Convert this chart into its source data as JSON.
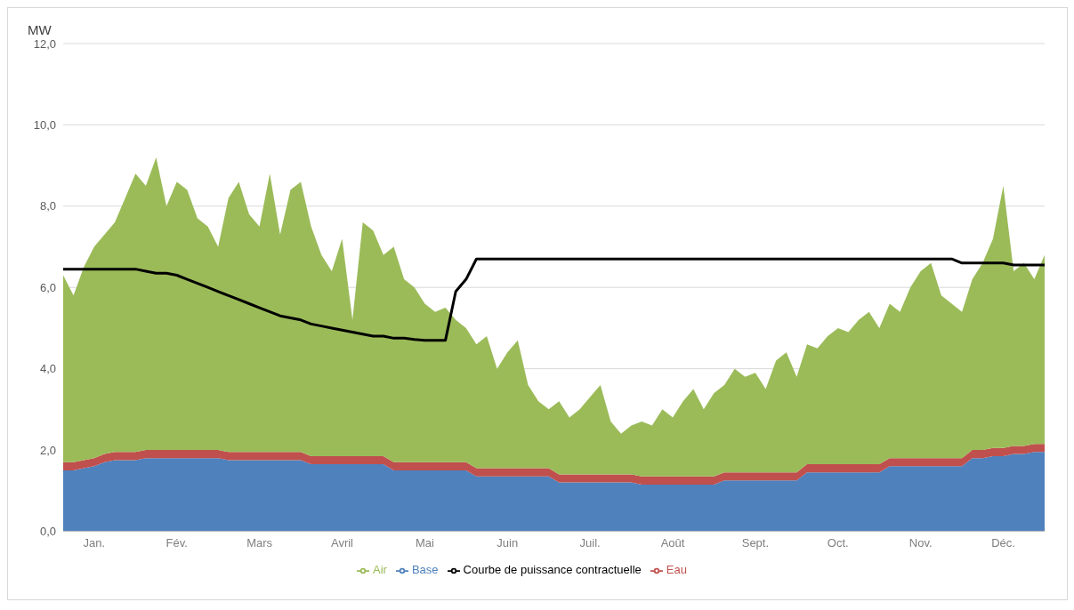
{
  "chart_data": {
    "type": "area",
    "ylabel": "MW",
    "stacked": true,
    "grid": "y",
    "legend": "bottom",
    "marker": "none",
    "categories": [
      null,
      null,
      null,
      "Jan.",
      null,
      null,
      null,
      null,
      null,
      null,
      null,
      "Fév.",
      null,
      null,
      null,
      null,
      null,
      null,
      null,
      "Mars",
      null,
      null,
      null,
      null,
      null,
      null,
      null,
      "Avril",
      null,
      null,
      null,
      null,
      null,
      null,
      null,
      "Mai",
      null,
      null,
      null,
      null,
      null,
      null,
      null,
      "Juin",
      null,
      null,
      null,
      null,
      null,
      null,
      null,
      "Juil.",
      null,
      null,
      null,
      null,
      null,
      null,
      null,
      "Août",
      null,
      null,
      null,
      null,
      null,
      null,
      null,
      "Sept.",
      null,
      null,
      null,
      null,
      null,
      null,
      null,
      "Oct.",
      null,
      null,
      null,
      null,
      null,
      null,
      null,
      "Nov.",
      null,
      null,
      null,
      null,
      null,
      null,
      null,
      "Déc.",
      null,
      null,
      null,
      null
    ],
    "ylim": [
      0,
      12
    ],
    "yticks": [
      {
        "value": 0,
        "label": "0,0"
      },
      {
        "value": 2,
        "label": "2,0"
      },
      {
        "value": 4,
        "label": "4,0"
      },
      {
        "value": 6,
        "label": "6,0"
      },
      {
        "value": 8,
        "label": "8,0"
      },
      {
        "value": 10,
        "label": "10,0"
      },
      {
        "value": 12,
        "label": "12,0"
      }
    ],
    "series": [
      {
        "name": "Base",
        "color": "#4f81bd",
        "values": [
          1.5,
          1.5,
          1.55,
          1.6,
          1.7,
          1.75,
          1.75,
          1.75,
          1.8,
          1.8,
          1.8,
          1.8,
          1.8,
          1.8,
          1.8,
          1.8,
          1.75,
          1.75,
          1.75,
          1.75,
          1.75,
          1.75,
          1.75,
          1.75,
          1.65,
          1.65,
          1.65,
          1.65,
          1.65,
          1.65,
          1.65,
          1.65,
          1.5,
          1.5,
          1.5,
          1.5,
          1.5,
          1.5,
          1.5,
          1.5,
          1.35,
          1.35,
          1.35,
          1.35,
          1.35,
          1.35,
          1.35,
          1.35,
          1.2,
          1.2,
          1.2,
          1.2,
          1.2,
          1.2,
          1.2,
          1.2,
          1.15,
          1.15,
          1.15,
          1.15,
          1.15,
          1.15,
          1.15,
          1.15,
          1.25,
          1.25,
          1.25,
          1.25,
          1.25,
          1.25,
          1.25,
          1.25,
          1.45,
          1.45,
          1.45,
          1.45,
          1.45,
          1.45,
          1.45,
          1.45,
          1.6,
          1.6,
          1.6,
          1.6,
          1.6,
          1.6,
          1.6,
          1.6,
          1.8,
          1.8,
          1.85,
          1.85,
          1.9,
          1.9,
          1.95,
          1.95
        ]
      },
      {
        "name": "Eau",
        "color": "#c0504d",
        "values": [
          0.2,
          0.2,
          0.2,
          0.2,
          0.2,
          0.2,
          0.2,
          0.2,
          0.2,
          0.2,
          0.2,
          0.2,
          0.2,
          0.2,
          0.2,
          0.2,
          0.2,
          0.2,
          0.2,
          0.2,
          0.2,
          0.2,
          0.2,
          0.2,
          0.2,
          0.2,
          0.2,
          0.2,
          0.2,
          0.2,
          0.2,
          0.2,
          0.2,
          0.2,
          0.2,
          0.2,
          0.2,
          0.2,
          0.2,
          0.2,
          0.2,
          0.2,
          0.2,
          0.2,
          0.2,
          0.2,
          0.2,
          0.2,
          0.2,
          0.2,
          0.2,
          0.2,
          0.2,
          0.2,
          0.2,
          0.2,
          0.2,
          0.2,
          0.2,
          0.2,
          0.2,
          0.2,
          0.2,
          0.2,
          0.2,
          0.2,
          0.2,
          0.2,
          0.2,
          0.2,
          0.2,
          0.2,
          0.2,
          0.2,
          0.2,
          0.2,
          0.2,
          0.2,
          0.2,
          0.2,
          0.2,
          0.2,
          0.2,
          0.2,
          0.2,
          0.2,
          0.2,
          0.2,
          0.2,
          0.2,
          0.2,
          0.2,
          0.2,
          0.2,
          0.2,
          0.2
        ]
      },
      {
        "name": "Air",
        "color": "#9bbb59",
        "values": [
          4.6,
          4.1,
          4.75,
          5.2,
          5.4,
          5.65,
          6.25,
          6.85,
          6.5,
          7.2,
          6.0,
          6.6,
          6.4,
          5.7,
          5.5,
          5.0,
          6.25,
          6.65,
          5.85,
          5.55,
          6.85,
          5.35,
          6.45,
          6.65,
          5.65,
          4.95,
          4.55,
          5.35,
          3.35,
          5.75,
          5.55,
          4.95,
          5.3,
          4.5,
          4.3,
          3.9,
          3.7,
          3.8,
          3.5,
          3.3,
          3.05,
          3.25,
          2.45,
          2.85,
          3.15,
          2.05,
          1.65,
          1.45,
          1.8,
          1.4,
          1.6,
          1.9,
          2.2,
          1.3,
          1.0,
          1.2,
          1.35,
          1.25,
          1.65,
          1.45,
          1.85,
          2.15,
          1.65,
          2.05,
          2.15,
          2.55,
          2.35,
          2.45,
          2.05,
          2.75,
          2.95,
          2.35,
          2.95,
          2.85,
          3.15,
          3.35,
          3.25,
          3.55,
          3.75,
          3.35,
          3.8,
          3.6,
          4.2,
          4.6,
          4.8,
          4.0,
          3.8,
          3.6,
          4.2,
          4.6,
          5.15,
          6.45,
          4.3,
          4.5,
          4.05,
          4.65
        ]
      },
      {
        "name": "Courbe de puissance contractuelle",
        "type": "line",
        "color": "#000000",
        "values": [
          6.45,
          6.45,
          6.45,
          6.45,
          6.45,
          6.45,
          6.45,
          6.45,
          6.4,
          6.35,
          6.35,
          6.3,
          6.2,
          6.1,
          6.0,
          5.9,
          5.8,
          5.7,
          5.6,
          5.5,
          5.4,
          5.3,
          5.25,
          5.2,
          5.1,
          5.05,
          5.0,
          4.95,
          4.9,
          4.85,
          4.8,
          4.8,
          4.75,
          4.75,
          4.72,
          4.7,
          4.7,
          4.7,
          5.9,
          6.2,
          6.7,
          6.7,
          6.7,
          6.7,
          6.7,
          6.7,
          6.7,
          6.7,
          6.7,
          6.7,
          6.7,
          6.7,
          6.7,
          6.7,
          6.7,
          6.7,
          6.7,
          6.7,
          6.7,
          6.7,
          6.7,
          6.7,
          6.7,
          6.7,
          6.7,
          6.7,
          6.7,
          6.7,
          6.7,
          6.7,
          6.7,
          6.7,
          6.7,
          6.7,
          6.7,
          6.7,
          6.7,
          6.7,
          6.7,
          6.7,
          6.7,
          6.7,
          6.7,
          6.7,
          6.7,
          6.7,
          6.7,
          6.6,
          6.6,
          6.6,
          6.6,
          6.6,
          6.55,
          6.55,
          6.55,
          6.55
        ]
      }
    ]
  }
}
